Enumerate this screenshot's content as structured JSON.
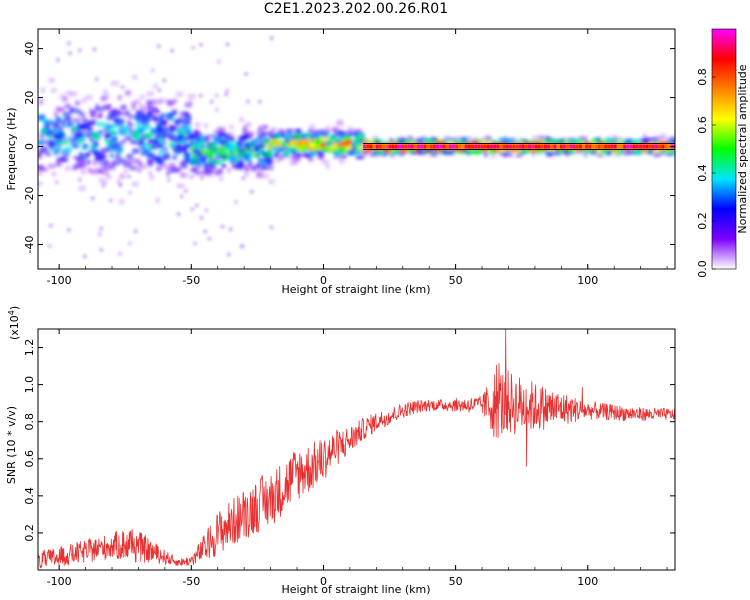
{
  "title": "C2E1.2023.202.00.26.R01",
  "chart_data": [
    {
      "type": "heatmap",
      "xlabel": "Height of straight line (km)",
      "ylabel": "Frequency (Hz)",
      "xlim": [
        -108,
        133
      ],
      "ylim": [
        -50,
        48
      ],
      "x_ticks": [
        -100,
        -50,
        0,
        50,
        100
      ],
      "y_ticks": [
        -40,
        -20,
        0,
        20,
        40
      ],
      "colorbar": {
        "label": "Normalized spectral amplitude",
        "range": [
          0.0,
          1.0
        ],
        "ticks": [
          "0.0",
          "0.2",
          "0.4",
          "0.6",
          "0.8"
        ],
        "tick_values": [
          0.0,
          0.2,
          0.4,
          0.6,
          0.8
        ],
        "colormap": [
          "#ffffff",
          "#7d00ff",
          "#0000ff",
          "#00e5ff",
          "#00ff00",
          "#ffff00",
          "#ff8000",
          "#ff0000",
          "#ff00ff"
        ]
      },
      "description_of_content": "",
      "bands": [
        {
          "x_range": [
            -108,
            -50
          ],
          "freq_center": 4,
          "freq_spread": 9,
          "mean_amplitude": 0.3
        },
        {
          "x_range": [
            -50,
            -20
          ],
          "freq_center": -2,
          "freq_spread": 5,
          "mean_amplitude": 0.4
        },
        {
          "x_range": [
            -20,
            15
          ],
          "freq_center": 1,
          "freq_spread": 3,
          "mean_amplitude": 0.55
        },
        {
          "x_range": [
            15,
            133
          ],
          "freq_center": 0,
          "freq_spread": 1.5,
          "mean_amplitude": 0.8
        }
      ]
    },
    {
      "type": "line",
      "xlabel": "Height of straight line (km)",
      "ylabel": "SNR (10 * v/v)",
      "yscale_label": "(x10",
      "yscale_exp": "4",
      "xlim": [
        -108,
        133
      ],
      "ylim": [
        0,
        1.3
      ],
      "x_ticks": [
        -100,
        -50,
        0,
        50,
        100
      ],
      "y_ticks": [
        0.2,
        0.4,
        0.6,
        0.8,
        1.0,
        1.2
      ],
      "y_tick_labels": [
        "0.2",
        "0.4",
        "0.6",
        "0.8",
        "1.0",
        "1.2"
      ],
      "color": "#e83030",
      "trend": {
        "x": [
          -108,
          -100,
          -90,
          -80,
          -73,
          -65,
          -55,
          -50,
          -45,
          -40,
          -35,
          -30,
          -25,
          -20,
          -15,
          -10,
          -5,
          0,
          5,
          10,
          15,
          20,
          25,
          30,
          35,
          40,
          50,
          60,
          70,
          80,
          90,
          100,
          110,
          120,
          133
        ],
        "y": [
          0.05,
          0.07,
          0.1,
          0.13,
          0.14,
          0.1,
          0.04,
          0.05,
          0.12,
          0.2,
          0.25,
          0.3,
          0.35,
          0.38,
          0.45,
          0.52,
          0.55,
          0.6,
          0.66,
          0.7,
          0.76,
          0.8,
          0.83,
          0.86,
          0.88,
          0.89,
          0.89,
          0.89,
          0.9,
          0.88,
          0.87,
          0.86,
          0.85,
          0.84,
          0.84
        ]
      },
      "noise": {
        "x": [
          -108,
          -80,
          -73,
          -60,
          -55,
          -50,
          -40,
          -25,
          -10,
          0,
          15,
          30,
          45,
          60,
          65,
          100,
          133
        ],
        "amp": [
          0.05,
          0.07,
          0.1,
          0.04,
          0.02,
          0.03,
          0.12,
          0.15,
          0.15,
          0.12,
          0.06,
          0.04,
          0.03,
          0.05,
          0.2,
          0.05,
          0.03
        ]
      }
    }
  ]
}
